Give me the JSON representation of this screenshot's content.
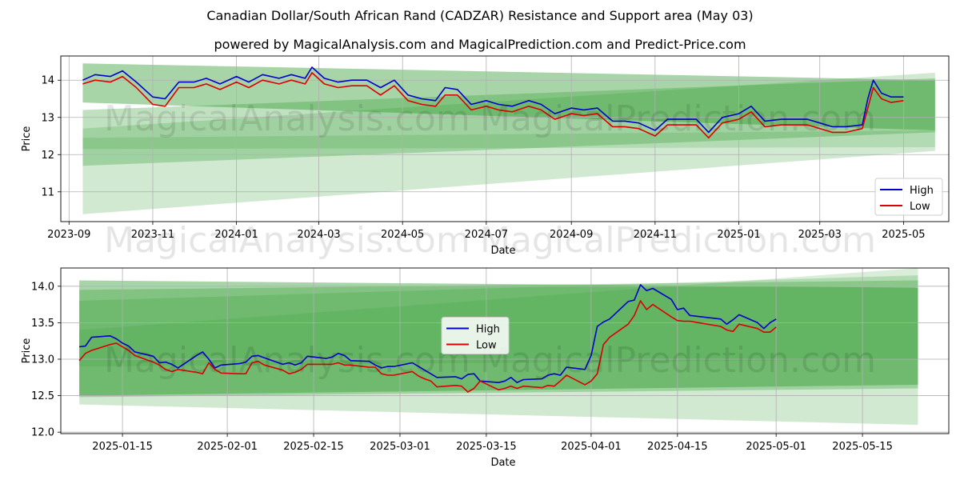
{
  "title": "Canadian Dollar/South African Rand (CADZAR) Resistance and Support area (May 03)",
  "subtitle": "powered by MagicalAnalysis.com and MagicalPrediction.com and Predict-Price.com",
  "watermark": "MagicalAnalysis.com",
  "watermark2": "MagicalPrediction.com",
  "colors": {
    "high": "#0000cc",
    "low": "#dd0000",
    "band": "#2e9a2e",
    "grid": "#b0b0b0"
  },
  "chart_data": [
    {
      "type": "line",
      "xlabel": "Date",
      "ylabel": "Price",
      "legend_position": "bottom-right",
      "grid": true,
      "xlim": [
        "2023-08-26",
        "2025-06-03"
      ],
      "ylim": [
        10.2,
        14.65
      ],
      "x_ticks": [
        "2023-09",
        "2023-11",
        "2024-01",
        "2024-03",
        "2024-05",
        "2024-07",
        "2024-09",
        "2024-11",
        "2025-01",
        "2025-03",
        "2025-05"
      ],
      "x_tick_dates": [
        "2023-09-01",
        "2023-11-01",
        "2024-01-01",
        "2024-03-01",
        "2024-05-01",
        "2024-07-01",
        "2024-09-01",
        "2024-11-01",
        "2025-01-01",
        "2025-03-01",
        "2025-05-01"
      ],
      "y_ticks": [
        11,
        12,
        13,
        14
      ],
      "bands": [
        {
          "x": [
            "2023-09-11",
            "2025-05-24"
          ],
          "upper": [
            14.45,
            14.0
          ],
          "lower": [
            13.4,
            12.65
          ]
        },
        {
          "x": [
            "2023-09-11",
            "2025-05-24"
          ],
          "upper": [
            13.2,
            14.05
          ],
          "lower": [
            11.7,
            12.6
          ]
        },
        {
          "x": [
            "2023-09-11",
            "2025-05-24"
          ],
          "upper": [
            12.7,
            14.2
          ],
          "lower": [
            10.4,
            12.1
          ]
        },
        {
          "x": [
            "2023-09-11",
            "2025-05-24"
          ],
          "upper": [
            12.45,
            12.65
          ],
          "lower": [
            12.15,
            12.2
          ]
        }
      ],
      "series": [
        {
          "name": "High",
          "x": [
            "2023-09-11",
            "2023-09-20",
            "2023-10-01",
            "2023-10-10",
            "2023-10-20",
            "2023-11-01",
            "2023-11-10",
            "2023-11-20",
            "2023-12-01",
            "2023-12-10",
            "2023-12-20",
            "2024-01-01",
            "2024-01-10",
            "2024-01-20",
            "2024-02-01",
            "2024-02-10",
            "2024-02-20",
            "2024-02-25",
            "2024-03-05",
            "2024-03-15",
            "2024-03-25",
            "2024-04-05",
            "2024-04-15",
            "2024-04-25",
            "2024-05-05",
            "2024-05-15",
            "2024-05-25",
            "2024-06-01",
            "2024-06-10",
            "2024-06-20",
            "2024-07-01",
            "2024-07-10",
            "2024-07-20",
            "2024-08-01",
            "2024-08-10",
            "2024-08-20",
            "2024-09-01",
            "2024-09-10",
            "2024-09-20",
            "2024-10-01",
            "2024-10-10",
            "2024-10-20",
            "2024-11-01",
            "2024-11-10",
            "2024-11-20",
            "2024-12-01",
            "2024-12-10",
            "2024-12-20",
            "2025-01-01",
            "2025-01-10",
            "2025-01-20",
            "2025-02-01",
            "2025-02-10",
            "2025-02-20",
            "2025-03-01",
            "2025-03-10",
            "2025-03-20",
            "2025-04-01",
            "2025-04-05",
            "2025-04-09",
            "2025-04-15",
            "2025-04-22",
            "2025-05-01"
          ],
          "values": [
            14.0,
            14.15,
            14.1,
            14.25,
            13.95,
            13.55,
            13.5,
            13.95,
            13.95,
            14.05,
            13.9,
            14.1,
            13.95,
            14.15,
            14.05,
            14.15,
            14.05,
            14.35,
            14.05,
            13.95,
            14.0,
            14.0,
            13.8,
            14.0,
            13.6,
            13.5,
            13.45,
            13.8,
            13.75,
            13.35,
            13.45,
            13.35,
            13.3,
            13.45,
            13.35,
            13.1,
            13.25,
            13.2,
            13.25,
            12.9,
            12.9,
            12.85,
            12.65,
            12.95,
            12.95,
            12.95,
            12.6,
            13.0,
            13.1,
            13.3,
            12.9,
            12.95,
            12.95,
            12.95,
            12.85,
            12.75,
            12.75,
            12.8,
            13.5,
            14.0,
            13.65,
            13.55,
            13.55
          ]
        },
        {
          "name": "Low",
          "x": [
            "2023-09-11",
            "2023-09-20",
            "2023-10-01",
            "2023-10-10",
            "2023-10-20",
            "2023-11-01",
            "2023-11-10",
            "2023-11-20",
            "2023-12-01",
            "2023-12-10",
            "2023-12-20",
            "2024-01-01",
            "2024-01-10",
            "2024-01-20",
            "2024-02-01",
            "2024-02-10",
            "2024-02-20",
            "2024-02-25",
            "2024-03-05",
            "2024-03-15",
            "2024-03-25",
            "2024-04-05",
            "2024-04-15",
            "2024-04-25",
            "2024-05-05",
            "2024-05-15",
            "2024-05-25",
            "2024-06-01",
            "2024-06-10",
            "2024-06-20",
            "2024-07-01",
            "2024-07-10",
            "2024-07-20",
            "2024-08-01",
            "2024-08-10",
            "2024-08-20",
            "2024-09-01",
            "2024-09-10",
            "2024-09-20",
            "2024-10-01",
            "2024-10-10",
            "2024-10-20",
            "2024-11-01",
            "2024-11-10",
            "2024-11-20",
            "2024-12-01",
            "2024-12-10",
            "2024-12-20",
            "2025-01-01",
            "2025-01-10",
            "2025-01-20",
            "2025-02-01",
            "2025-02-10",
            "2025-02-20",
            "2025-03-01",
            "2025-03-10",
            "2025-03-20",
            "2025-04-01",
            "2025-04-05",
            "2025-04-09",
            "2025-04-15",
            "2025-04-22",
            "2025-05-01"
          ],
          "values": [
            13.9,
            14.0,
            13.95,
            14.1,
            13.8,
            13.35,
            13.3,
            13.8,
            13.8,
            13.9,
            13.75,
            13.95,
            13.8,
            14.0,
            13.9,
            14.0,
            13.9,
            14.2,
            13.9,
            13.8,
            13.85,
            13.85,
            13.6,
            13.85,
            13.45,
            13.35,
            13.3,
            13.6,
            13.6,
            13.2,
            13.3,
            13.2,
            13.15,
            13.3,
            13.2,
            12.95,
            13.1,
            13.05,
            13.1,
            12.75,
            12.75,
            12.7,
            12.5,
            12.8,
            12.8,
            12.8,
            12.45,
            12.85,
            12.95,
            13.15,
            12.75,
            12.8,
            12.8,
            12.8,
            12.7,
            12.6,
            12.6,
            12.7,
            13.25,
            13.8,
            13.5,
            13.4,
            13.45
          ]
        }
      ]
    },
    {
      "type": "line",
      "xlabel": "Date",
      "ylabel": "Price",
      "legend_position": "center",
      "grid": true,
      "xlim": [
        "2025-01-05",
        "2025-05-29"
      ],
      "ylim": [
        11.98,
        14.25
      ],
      "x_ticks": [
        "2025-01-15",
        "2025-02-01",
        "2025-02-15",
        "2025-03-01",
        "2025-03-15",
        "2025-04-01",
        "2025-04-15",
        "2025-05-01",
        "2025-05-15"
      ],
      "y_ticks": [
        12.0,
        12.5,
        13.0,
        13.5,
        14.0
      ],
      "y_tick_labels": [
        "12.0",
        "12.5",
        "13.0",
        "13.5",
        "14.0"
      ],
      "bands": [
        {
          "x": [
            "2025-01-08",
            "2025-05-24"
          ],
          "upper": [
            14.08,
            13.98
          ],
          "lower": [
            12.5,
            12.65
          ]
        },
        {
          "x": [
            "2025-01-08",
            "2025-05-24"
          ],
          "upper": [
            13.95,
            14.08
          ],
          "lower": [
            12.48,
            12.6
          ]
        },
        {
          "x": [
            "2025-01-08",
            "2025-05-24"
          ],
          "upper": [
            13.8,
            14.15
          ],
          "lower": [
            12.38,
            12.1
          ]
        },
        {
          "x": [
            "2025-01-08",
            "2025-05-24"
          ],
          "upper": [
            13.4,
            14.25
          ],
          "lower": [
            12.9,
            13.0
          ]
        }
      ],
      "series": [
        {
          "name": "High",
          "x": [
            "2025-01-08",
            "2025-01-09",
            "2025-01-10",
            "2025-01-13",
            "2025-01-14",
            "2025-01-15",
            "2025-01-16",
            "2025-01-17",
            "2025-01-20",
            "2025-01-21",
            "2025-01-22",
            "2025-01-23",
            "2025-01-24",
            "2025-01-27",
            "2025-01-28",
            "2025-01-29",
            "2025-01-30",
            "2025-01-31",
            "2025-02-03",
            "2025-02-04",
            "2025-02-05",
            "2025-02-06",
            "2025-02-07",
            "2025-02-10",
            "2025-02-11",
            "2025-02-12",
            "2025-02-13",
            "2025-02-14",
            "2025-02-17",
            "2025-02-18",
            "2025-02-19",
            "2025-02-20",
            "2025-02-21",
            "2025-02-24",
            "2025-02-25",
            "2025-02-26",
            "2025-02-27",
            "2025-02-28",
            "2025-03-03",
            "2025-03-04",
            "2025-03-05",
            "2025-03-06",
            "2025-03-07",
            "2025-03-10",
            "2025-03-11",
            "2025-03-12",
            "2025-03-13",
            "2025-03-14",
            "2025-03-17",
            "2025-03-18",
            "2025-03-19",
            "2025-03-20",
            "2025-03-21",
            "2025-03-24",
            "2025-03-25",
            "2025-03-26",
            "2025-03-27",
            "2025-03-28",
            "2025-03-31",
            "2025-04-01",
            "2025-04-02",
            "2025-04-03",
            "2025-04-04",
            "2025-04-07",
            "2025-04-08",
            "2025-04-09",
            "2025-04-10",
            "2025-04-11",
            "2025-04-14",
            "2025-04-15",
            "2025-04-16",
            "2025-04-17",
            "2025-04-22",
            "2025-04-23",
            "2025-04-24",
            "2025-04-25",
            "2025-04-28",
            "2025-04-29",
            "2025-04-30",
            "2025-05-01"
          ],
          "values": [
            13.17,
            13.18,
            13.3,
            13.32,
            13.28,
            13.22,
            13.18,
            13.1,
            13.04,
            12.95,
            12.96,
            12.93,
            12.88,
            13.05,
            13.1,
            13.0,
            12.88,
            12.92,
            12.94,
            12.96,
            13.04,
            13.05,
            13.02,
            12.93,
            12.95,
            12.92,
            12.95,
            13.04,
            13.01,
            13.03,
            13.08,
            13.05,
            12.98,
            12.97,
            12.92,
            12.88,
            12.9,
            12.9,
            12.95,
            12.9,
            12.85,
            12.8,
            12.75,
            12.76,
            12.73,
            12.79,
            12.8,
            12.7,
            12.68,
            12.7,
            12.75,
            12.68,
            12.72,
            12.73,
            12.78,
            12.8,
            12.78,
            12.89,
            12.86,
            13.05,
            13.45,
            13.51,
            13.55,
            13.79,
            13.81,
            14.02,
            13.94,
            13.97,
            13.82,
            13.68,
            13.7,
            13.6,
            13.55,
            13.48,
            13.54,
            13.61,
            13.5,
            13.42,
            13.5,
            13.55
          ]
        },
        {
          "name": "Low",
          "x": [
            "2025-01-08",
            "2025-01-09",
            "2025-01-10",
            "2025-01-13",
            "2025-01-14",
            "2025-01-15",
            "2025-01-16",
            "2025-01-17",
            "2025-01-20",
            "2025-01-21",
            "2025-01-22",
            "2025-01-23",
            "2025-01-24",
            "2025-01-27",
            "2025-01-28",
            "2025-01-29",
            "2025-01-30",
            "2025-01-31",
            "2025-02-03",
            "2025-02-04",
            "2025-02-05",
            "2025-02-06",
            "2025-02-07",
            "2025-02-10",
            "2025-02-11",
            "2025-02-12",
            "2025-02-13",
            "2025-02-14",
            "2025-02-17",
            "2025-02-18",
            "2025-02-19",
            "2025-02-20",
            "2025-02-21",
            "2025-02-24",
            "2025-02-25",
            "2025-02-26",
            "2025-02-27",
            "2025-02-28",
            "2025-03-03",
            "2025-03-04",
            "2025-03-05",
            "2025-03-06",
            "2025-03-07",
            "2025-03-10",
            "2025-03-11",
            "2025-03-12",
            "2025-03-13",
            "2025-03-14",
            "2025-03-17",
            "2025-03-18",
            "2025-03-19",
            "2025-03-20",
            "2025-03-21",
            "2025-03-24",
            "2025-03-25",
            "2025-03-26",
            "2025-03-27",
            "2025-03-28",
            "2025-03-31",
            "2025-04-01",
            "2025-04-02",
            "2025-04-03",
            "2025-04-04",
            "2025-04-07",
            "2025-04-08",
            "2025-04-09",
            "2025-04-10",
            "2025-04-11",
            "2025-04-14",
            "2025-04-15",
            "2025-04-16",
            "2025-04-17",
            "2025-04-22",
            "2025-04-23",
            "2025-04-24",
            "2025-04-25",
            "2025-04-28",
            "2025-04-29",
            "2025-04-30",
            "2025-05-01"
          ],
          "values": [
            12.98,
            13.08,
            13.12,
            13.2,
            13.22,
            13.17,
            13.12,
            13.05,
            12.96,
            12.92,
            12.86,
            12.83,
            12.86,
            12.82,
            12.8,
            12.95,
            12.86,
            12.81,
            12.8,
            12.8,
            12.95,
            12.97,
            12.92,
            12.85,
            12.8,
            12.82,
            12.86,
            12.93,
            12.93,
            12.93,
            12.95,
            12.92,
            12.92,
            12.89,
            12.89,
            12.8,
            12.78,
            12.78,
            12.83,
            12.77,
            12.73,
            12.7,
            12.62,
            12.64,
            12.63,
            12.55,
            12.6,
            12.7,
            12.58,
            12.6,
            12.63,
            12.6,
            12.63,
            12.61,
            12.64,
            12.63,
            12.7,
            12.78,
            12.65,
            12.7,
            12.8,
            13.2,
            13.3,
            13.48,
            13.6,
            13.8,
            13.68,
            13.75,
            13.58,
            13.53,
            13.52,
            13.52,
            13.45,
            13.4,
            13.38,
            13.48,
            13.42,
            13.37,
            13.37,
            13.44
          ]
        }
      ]
    }
  ]
}
